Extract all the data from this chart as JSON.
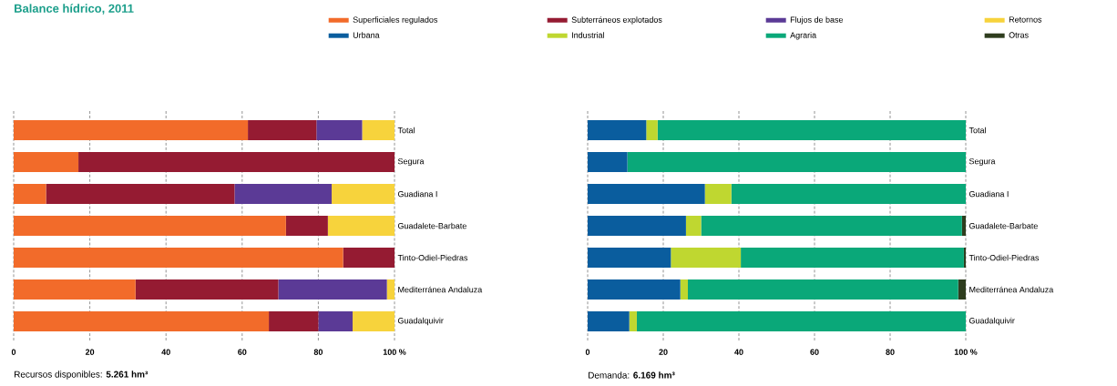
{
  "chart_data": [
    {
      "type": "bar",
      "orientation": "horizontal",
      "stacked": true,
      "title": "Balance hídrico, 2011",
      "categories": [
        "Total",
        "Segura",
        "Guadiana I",
        "Guadalete-Barbate",
        "Tinto-Odiel-Piedras",
        "Mediterránea Andaluza",
        "Guadalquivir"
      ],
      "series": [
        {
          "name": "Superficiales regulados",
          "color": "#f26b2a",
          "values": [
            61.5,
            17,
            8.5,
            71.5,
            86.5,
            32,
            67
          ]
        },
        {
          "name": "Subterráneos explotados",
          "color": "#951b32",
          "values": [
            18,
            83,
            49.5,
            11,
            13.5,
            37.5,
            13
          ]
        },
        {
          "name": "Flujos de base",
          "color": "#5b3a96",
          "values": [
            12,
            0,
            25.5,
            0,
            0,
            28.5,
            9
          ]
        },
        {
          "name": "Retornos",
          "color": "#f7d33c",
          "values": [
            8.5,
            0,
            16.5,
            17.5,
            0,
            2,
            11
          ]
        }
      ],
      "xlim": [
        0,
        100
      ],
      "xticks": [
        0,
        20,
        40,
        60,
        80,
        {
          "value": 100,
          "label": "100 %"
        }
      ],
      "grid": "x",
      "legend": "top",
      "annotations": [
        "Recursos disponibles: **5.261 hm³**"
      ]
    },
    {
      "type": "bar",
      "orientation": "horizontal",
      "stacked": true,
      "categories": [
        "Total",
        "Segura",
        "Guadiana I",
        "Guadalete-Barbate",
        "Tinto-Odiel-Piedras",
        "Mediterránea Andaluza",
        "Guadalquivir"
      ],
      "series": [
        {
          "name": "Urbana",
          "color": "#0a5d9e",
          "values": [
            15.5,
            10.5,
            31,
            26,
            22,
            24.5,
            11
          ]
        },
        {
          "name": "Industrial",
          "color": "#bfd730",
          "values": [
            3,
            0,
            7,
            4,
            18.5,
            2,
            2
          ]
        },
        {
          "name": "Agraria",
          "color": "#0aa879",
          "values": [
            81.5,
            89.5,
            62,
            69,
            59,
            71.5,
            87
          ]
        },
        {
          "name": "Otras",
          "color": "#2e3d1e",
          "values": [
            0,
            0,
            0,
            1,
            0.5,
            2,
            0
          ]
        }
      ],
      "xlim": [
        0,
        100
      ],
      "xticks": [
        0,
        20,
        40,
        60,
        80,
        {
          "value": 100,
          "label": "100 %"
        }
      ],
      "grid": "x",
      "legend": "top",
      "annotations": [
        "Demanda: **6.169 hm³**"
      ]
    }
  ]
}
